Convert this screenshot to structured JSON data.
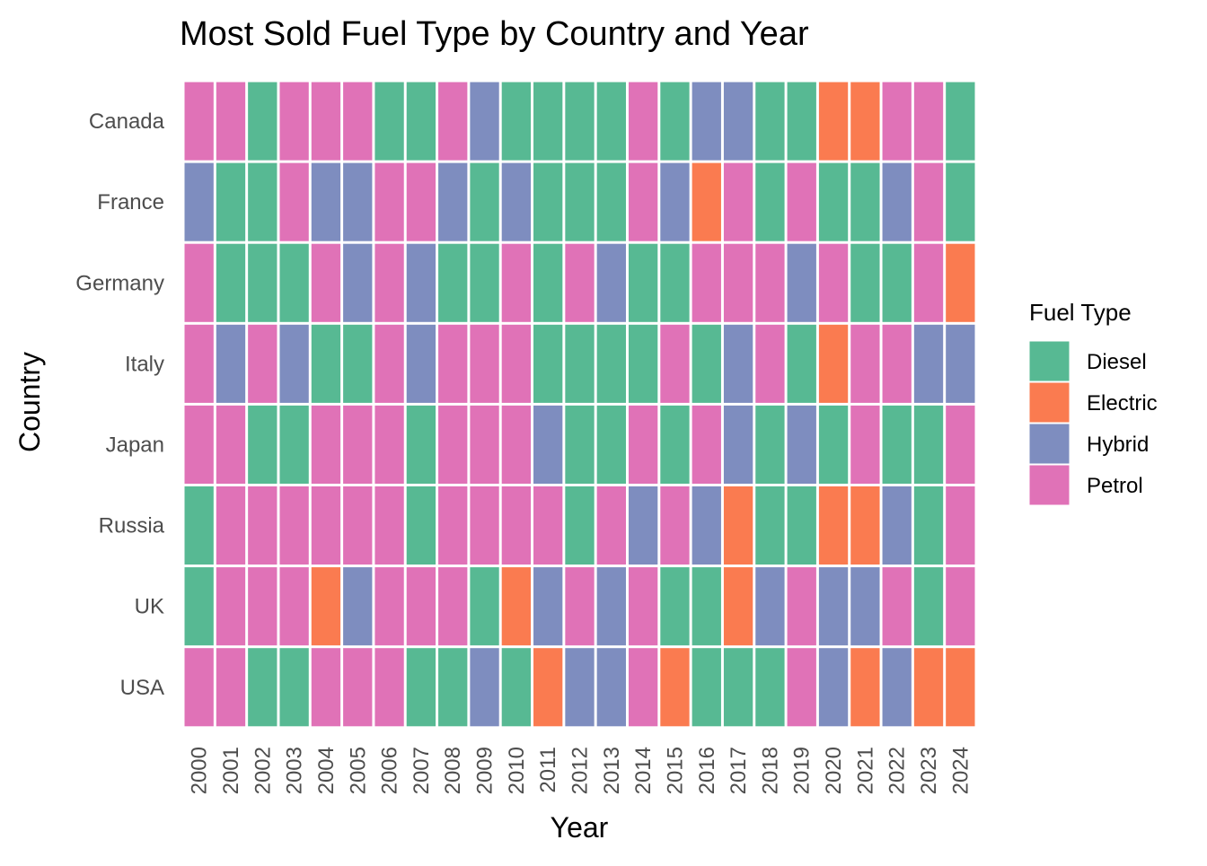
{
  "chart_data": {
    "type": "heatmap",
    "title": "Most Sold Fuel Type by Country and Year",
    "xlabel": "Year",
    "ylabel": "Country",
    "years": [
      "2000",
      "2001",
      "2002",
      "2003",
      "2004",
      "2005",
      "2006",
      "2007",
      "2008",
      "2009",
      "2010",
      "2011",
      "2012",
      "2013",
      "2014",
      "2015",
      "2016",
      "2017",
      "2018",
      "2019",
      "2020",
      "2021",
      "2022",
      "2023",
      "2024"
    ],
    "countries": [
      "Canada",
      "France",
      "Germany",
      "Italy",
      "Japan",
      "Russia",
      "UK",
      "USA"
    ],
    "legend": {
      "title": "Fuel Type",
      "placement": "right",
      "entries": [
        {
          "key": "D",
          "label": "Diesel",
          "color": "#57B993"
        },
        {
          "key": "E",
          "label": "Electric",
          "color": "#FA7B50"
        },
        {
          "key": "H",
          "label": "Hybrid",
          "color": "#7E8DBF"
        },
        {
          "key": "P",
          "label": "Petrol",
          "color": "#E072B7"
        }
      ]
    },
    "grid": false,
    "values": {
      "Canada": [
        "P",
        "P",
        "D",
        "P",
        "P",
        "P",
        "D",
        "D",
        "P",
        "H",
        "D",
        "D",
        "D",
        "D",
        "P",
        "D",
        "H",
        "H",
        "D",
        "D",
        "E",
        "E",
        "P",
        "P",
        "D"
      ],
      "France": [
        "H",
        "D",
        "D",
        "P",
        "H",
        "H",
        "P",
        "P",
        "H",
        "D",
        "H",
        "D",
        "D",
        "D",
        "P",
        "H",
        "E",
        "P",
        "D",
        "P",
        "D",
        "D",
        "H",
        "P",
        "D"
      ],
      "Germany": [
        "P",
        "D",
        "D",
        "D",
        "P",
        "H",
        "P",
        "H",
        "D",
        "D",
        "P",
        "D",
        "P",
        "H",
        "D",
        "D",
        "P",
        "P",
        "P",
        "H",
        "P",
        "D",
        "D",
        "P",
        "E"
      ],
      "Italy": [
        "P",
        "H",
        "P",
        "H",
        "D",
        "D",
        "P",
        "H",
        "P",
        "P",
        "P",
        "D",
        "D",
        "D",
        "D",
        "P",
        "D",
        "H",
        "P",
        "D",
        "E",
        "P",
        "P",
        "H",
        "H"
      ],
      "Japan": [
        "P",
        "P",
        "D",
        "D",
        "P",
        "P",
        "P",
        "D",
        "P",
        "P",
        "P",
        "H",
        "D",
        "D",
        "P",
        "D",
        "P",
        "H",
        "D",
        "H",
        "D",
        "P",
        "D",
        "D",
        "P"
      ],
      "Russia": [
        "D",
        "P",
        "P",
        "P",
        "P",
        "P",
        "P",
        "D",
        "P",
        "P",
        "P",
        "P",
        "D",
        "P",
        "H",
        "P",
        "H",
        "E",
        "D",
        "D",
        "E",
        "E",
        "H",
        "D",
        "P"
      ],
      "UK": [
        "D",
        "P",
        "P",
        "P",
        "E",
        "H",
        "P",
        "P",
        "P",
        "D",
        "E",
        "H",
        "P",
        "H",
        "P",
        "D",
        "D",
        "E",
        "H",
        "P",
        "H",
        "H",
        "P",
        "D",
        "P"
      ],
      "USA": [
        "P",
        "P",
        "D",
        "D",
        "P",
        "P",
        "P",
        "D",
        "D",
        "H",
        "D",
        "E",
        "H",
        "H",
        "P",
        "E",
        "D",
        "D",
        "D",
        "P",
        "H",
        "E",
        "H",
        "E",
        "E"
      ]
    }
  }
}
